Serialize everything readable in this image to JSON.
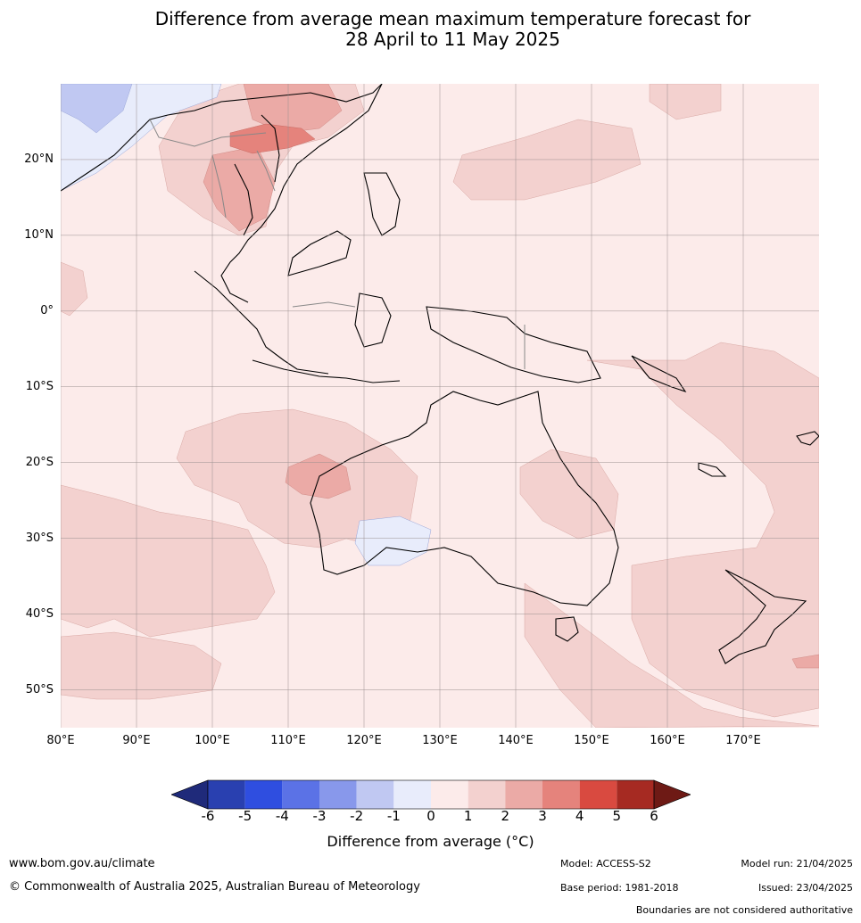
{
  "title": {
    "line1": "Difference from average mean maximum temperature forecast for",
    "line2": "28 April to 11 May 2025"
  },
  "map": {
    "region": "Southeast Asia, Australia and Western Pacific",
    "lat_labels": [
      "20°N",
      "10°N",
      "0°",
      "10°S",
      "20°S",
      "30°S",
      "40°S",
      "50°S"
    ],
    "lon_labels": [
      "80°E",
      "90°E",
      "100°E",
      "110°E",
      "120°E",
      "130°E",
      "140°E",
      "150°E",
      "160°E",
      "170°E"
    ],
    "lat_range": [
      -55,
      30
    ],
    "lon_range": [
      80,
      180
    ],
    "grid": true
  },
  "colorbar": {
    "ticks": [
      "-6",
      "-5",
      "-4",
      "-3",
      "-2",
      "-1",
      "0",
      "1",
      "2",
      "3",
      "4",
      "5",
      "6"
    ],
    "colors": [
      "#1f2a7a",
      "#2940b0",
      "#2f4ee0",
      "#5b72e6",
      "#8898eb",
      "#c0c8f2",
      "#e8ecfb",
      "#fcebea",
      "#f3d1cf",
      "#ebaaa6",
      "#e5837c",
      "#d94a40",
      "#a62a22",
      "#6e1a15"
    ],
    "label": "Difference from average (°C)"
  },
  "footer": {
    "url": "www.bom.gov.au/climate",
    "copyright": "© Commonwealth of Australia 2025, Australian Bureau of Meteorology",
    "model": "Model: ACCESS-S2",
    "base_period": "Base period: 1981-2018",
    "model_run": "Model run: 21/04/2025",
    "issued": "Issued: 23/04/2025",
    "disclaimer": "Boundaries are not considered authoritative"
  }
}
